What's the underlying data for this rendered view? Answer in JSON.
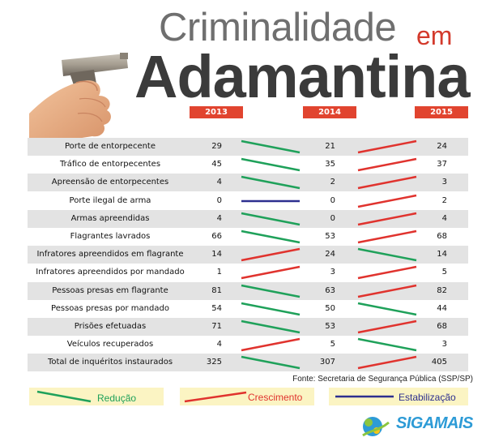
{
  "title": {
    "line1": "Criminalidade",
    "em": "em",
    "line2": "Adamantina"
  },
  "years": [
    "2013",
    "2014",
    "2015"
  ],
  "colors": {
    "reduction": "#1fa15a",
    "growth": "#e0332e",
    "stable": "#2d2f8f",
    "year_bg": "#e1442f"
  },
  "rows": [
    {
      "label": "Porte de entorpecente",
      "v2013": "29",
      "v2014": "21",
      "v2015": "24",
      "t1": "reduction",
      "t2": "growth"
    },
    {
      "label": "Tráfico de entorpecentes",
      "v2013": "45",
      "v2014": "35",
      "v2015": "37",
      "t1": "reduction",
      "t2": "growth"
    },
    {
      "label": "Apreensão de entorpecentes",
      "v2013": "4",
      "v2014": "2",
      "v2015": "3",
      "t1": "reduction",
      "t2": "growth"
    },
    {
      "label": "Porte ilegal de arma",
      "v2013": "0",
      "v2014": "0",
      "v2015": "2",
      "t1": "stable",
      "t2": "growth"
    },
    {
      "label": "Armas apreendidas",
      "v2013": "4",
      "v2014": "0",
      "v2015": "4",
      "t1": "reduction",
      "t2": "growth"
    },
    {
      "label": "Flagrantes lavrados",
      "v2013": "66",
      "v2014": "53",
      "v2015": "68",
      "t1": "reduction",
      "t2": "growth"
    },
    {
      "label": "Infratores apreendidos em flagrante",
      "v2013": "14",
      "v2014": "24",
      "v2015": "14",
      "t1": "growth",
      "t2": "reduction"
    },
    {
      "label": "Infratores apreendidos por mandado",
      "v2013": "1",
      "v2014": "3",
      "v2015": "5",
      "t1": "growth",
      "t2": "growth"
    },
    {
      "label": "Pessoas presas em flagrante",
      "v2013": "81",
      "v2014": "63",
      "v2015": "82",
      "t1": "reduction",
      "t2": "growth"
    },
    {
      "label": "Pessoas presas por mandado",
      "v2013": "54",
      "v2014": "50",
      "v2015": "44",
      "t1": "reduction",
      "t2": "reduction"
    },
    {
      "label": "Prisões efetuadas",
      "v2013": "71",
      "v2014": "53",
      "v2015": "68",
      "t1": "reduction",
      "t2": "growth"
    },
    {
      "label": "Veículos recuperados",
      "v2013": "4",
      "v2014": "5",
      "v2015": "3",
      "t1": "growth",
      "t2": "reduction"
    },
    {
      "label": "Total de inquéritos instaurados",
      "v2013": "325",
      "v2014": "307",
      "v2015": "405",
      "t1": "reduction",
      "t2": "growth"
    }
  ],
  "source": "Fonte: Secretaria de Segurança Pública (SSP/SP)",
  "legend": {
    "reduction": "Redução",
    "growth": "Crescimento",
    "stable": "Estabilização"
  },
  "logo": {
    "text": "SIGAMAIS"
  }
}
